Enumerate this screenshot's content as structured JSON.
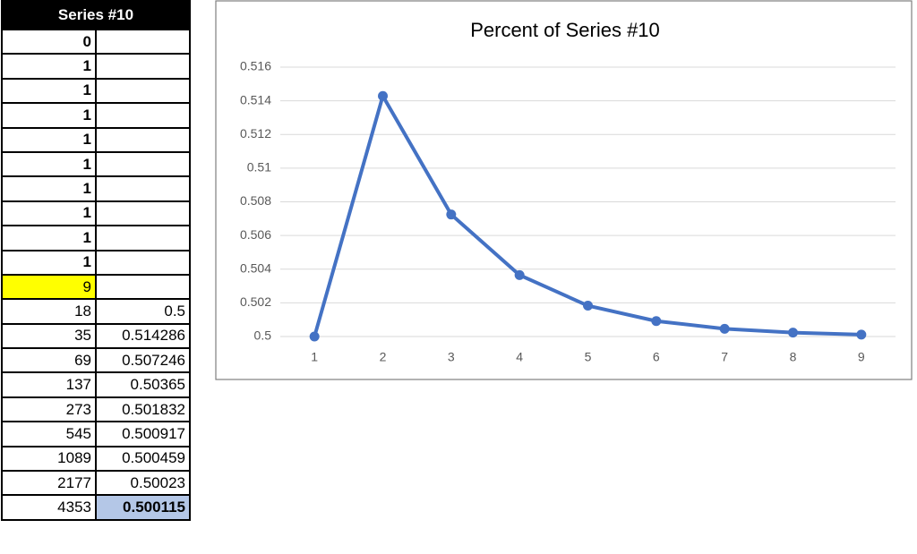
{
  "table": {
    "header": "Series #10",
    "rows": [
      [
        0,
        null
      ],
      [
        1,
        null
      ],
      [
        1,
        null
      ],
      [
        1,
        null
      ],
      [
        1,
        null
      ],
      [
        1,
        null
      ],
      [
        1,
        null
      ],
      [
        1,
        null
      ],
      [
        1,
        null
      ],
      [
        1,
        null
      ],
      [
        9,
        null
      ],
      [
        18,
        0.5
      ],
      [
        35,
        0.514286
      ],
      [
        69,
        0.507246
      ],
      [
        137,
        0.50365
      ],
      [
        273,
        0.501832
      ],
      [
        545,
        0.500917
      ],
      [
        1089,
        0.500459
      ],
      [
        2177,
        0.50023
      ],
      [
        4353,
        0.500115
      ]
    ]
  },
  "chart_data": {
    "type": "line",
    "title": "Percent of Series #10",
    "categories": [
      "1",
      "2",
      "3",
      "4",
      "5",
      "6",
      "7",
      "8",
      "9"
    ],
    "values": [
      0.5,
      0.514286,
      0.507246,
      0.50365,
      0.501832,
      0.500917,
      0.500459,
      0.50023,
      0.500115
    ],
    "color": "#4472c4",
    "ylim": [
      0.5,
      0.516
    ],
    "yticks": [
      0.5,
      0.502,
      0.504,
      0.506,
      0.508,
      0.51,
      0.512,
      0.514,
      0.516
    ],
    "grid": true
  }
}
